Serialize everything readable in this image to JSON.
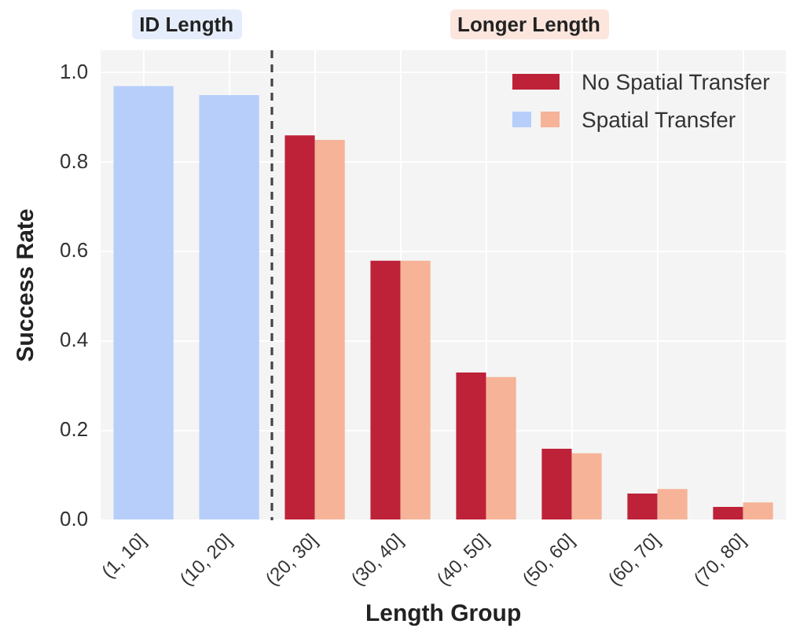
{
  "chart_data": {
    "type": "bar",
    "xlabel": "Length Group",
    "ylabel": "Success Rate",
    "categories": [
      "(1, 10]",
      "(10, 20]",
      "(20, 30]",
      "(30, 40]",
      "(40, 50]",
      "(50, 60]",
      "(60, 70]",
      "(70, 80]"
    ],
    "series": [
      {
        "name": "No Spatial Transfer",
        "color": "#be2239",
        "values": [
          null,
          null,
          0.86,
          0.58,
          0.33,
          0.16,
          0.06,
          0.03
        ]
      },
      {
        "name": "Spatial Transfer",
        "colors": [
          "#b7cefa",
          "#b7cefa",
          "#f6b398",
          "#f6b398",
          "#f6b398",
          "#f6b398",
          "#f6b398",
          "#f6b398"
        ],
        "values": [
          0.97,
          0.95,
          0.85,
          0.58,
          0.32,
          0.15,
          0.07,
          0.04
        ]
      }
    ],
    "ylim": [
      0,
      1.05
    ],
    "yticks": [
      {
        "value": 0,
        "label": "0.0"
      },
      {
        "value": 0.2,
        "label": "0.2"
      },
      {
        "value": 0.4,
        "label": "0.4"
      },
      {
        "value": 0.6,
        "label": "0.6"
      },
      {
        "value": 0.8,
        "label": "0.8"
      },
      {
        "value": 1,
        "label": "1.0"
      }
    ],
    "grid": true,
    "legend": "top right",
    "ref_lines": [
      {
        "axis": "x",
        "value": "(20, 30]",
        "color": "#444444",
        "line_style": "dashed"
      }
    ],
    "annotations": [
      "ID Length",
      "Longer Length"
    ]
  }
}
